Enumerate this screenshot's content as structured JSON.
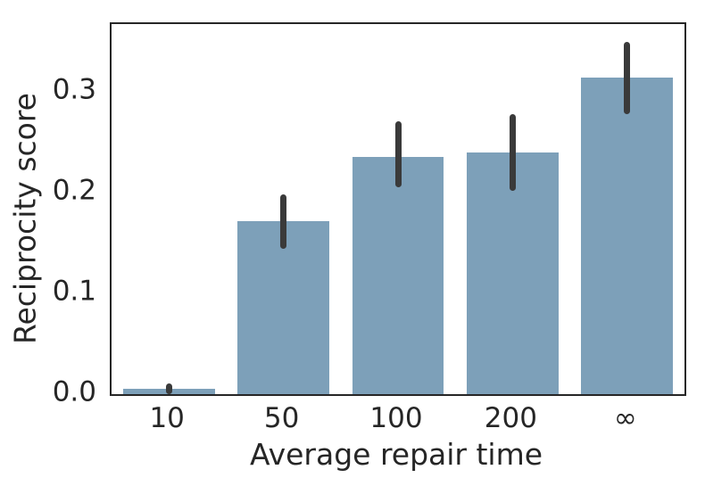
{
  "chart_data": {
    "type": "bar",
    "title": "",
    "xlabel": "Average repair time",
    "ylabel": "Reciprocity score",
    "categories": [
      "10",
      "50",
      "100",
      "200",
      "∞"
    ],
    "values": [
      0.005,
      0.172,
      0.235,
      0.24,
      0.314
    ],
    "error_bars": [
      [
        0.0,
        0.011
      ],
      [
        0.144,
        0.198
      ],
      [
        0.205,
        0.271
      ],
      [
        0.202,
        0.278
      ],
      [
        0.278,
        0.349
      ]
    ],
    "ylim": [
      0,
      0.367
    ],
    "ytick_values": [
      0.0,
      0.1,
      0.2,
      0.3
    ],
    "ytick_labels": [
      "0.0",
      "0.1",
      "0.2",
      "0.3"
    ],
    "grid": false,
    "legend": null,
    "bar_width_fraction": 0.8,
    "colors": {
      "bar_fill": "#7da0b9",
      "error_bar": "#3a3a3a",
      "spine": "#262626",
      "text": "#262626",
      "background": "#ffffff"
    }
  }
}
